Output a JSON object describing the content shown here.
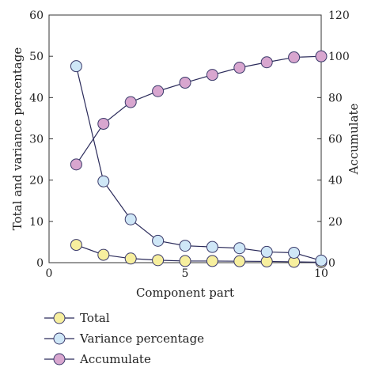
{
  "chart_data": {
    "type": "line",
    "title": "",
    "xlabel": "Component part",
    "ylabel_left": "Total and variance percentage",
    "ylabel_right": "Accumulate",
    "xlim": [
      0,
      10
    ],
    "ylim_left": [
      0,
      60
    ],
    "ylim_right": [
      0,
      120
    ],
    "x_ticks": [
      0,
      5,
      10
    ],
    "y_ticks_left": [
      0,
      10,
      20,
      30,
      40,
      50,
      60
    ],
    "y_ticks_right": [
      0,
      20,
      40,
      60,
      80,
      100,
      120
    ],
    "grid": false,
    "legend_position": "bottom-left",
    "series": [
      {
        "name": "Total",
        "axis": "left",
        "color": "#f7ef9e",
        "x": [
          1,
          2,
          3,
          4,
          5,
          6,
          7,
          8,
          9,
          10
        ],
        "y": [
          4.3,
          1.9,
          1.0,
          0.6,
          0.4,
          0.4,
          0.35,
          0.3,
          0.2,
          0.1
        ]
      },
      {
        "name": "Variance percentage",
        "axis": "left",
        "color": "#cfe7f7",
        "x": [
          1,
          2,
          3,
          4,
          5,
          6,
          7,
          8,
          9,
          10
        ],
        "y": [
          47.6,
          19.7,
          10.5,
          5.3,
          4.1,
          3.8,
          3.5,
          2.6,
          2.4,
          0.5
        ]
      },
      {
        "name": "Accumulate",
        "axis": "right",
        "color": "#d8a6cf",
        "x": [
          1,
          2,
          3,
          4,
          5,
          6,
          7,
          8,
          9,
          10
        ],
        "y": [
          47.6,
          67.3,
          77.8,
          83.1,
          87.2,
          91.0,
          94.5,
          97.1,
          99.5,
          100.0
        ]
      }
    ]
  }
}
